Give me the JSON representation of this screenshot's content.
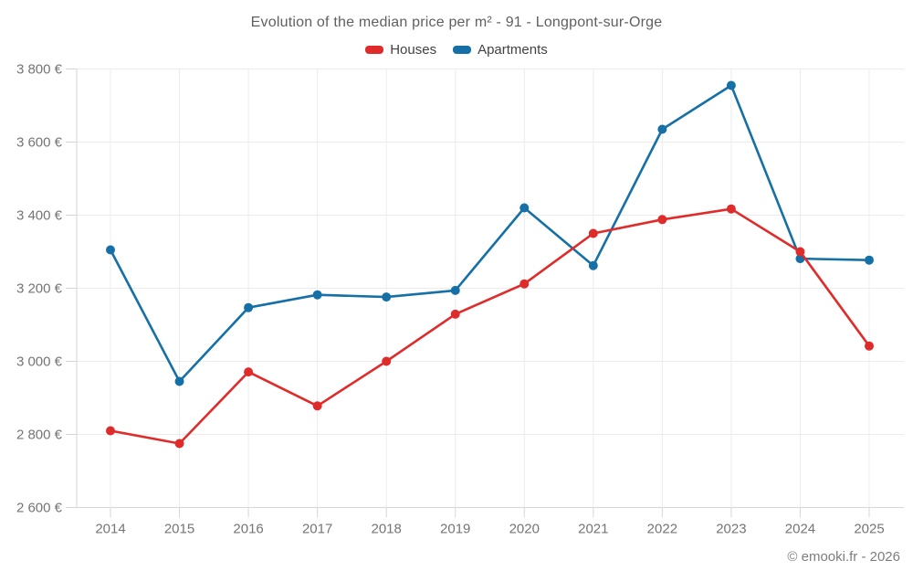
{
  "page": {
    "title": "Evolution of the median price per m² - 91 - Longpont-sur-Orge"
  },
  "chart_data": {
    "type": "line",
    "title": "Evolution of the median price per m² - 91 - Longpont-sur-Orge",
    "categories": [
      "2014",
      "2015",
      "2016",
      "2017",
      "2018",
      "2019",
      "2020",
      "2021",
      "2022",
      "2023",
      "2024",
      "2025"
    ],
    "series": [
      {
        "name": "Houses",
        "color": "#e02b2b",
        "values": [
          2810,
          2775,
          2971,
          2878,
          3000,
          3129,
          3212,
          3350,
          3388,
          3417,
          3300,
          3042
        ]
      },
      {
        "name": "Apartments",
        "color": "#1470a6",
        "values": [
          3305,
          2945,
          3147,
          3182,
          3176,
          3194,
          3420,
          3262,
          3635,
          3755,
          3281,
          3277
        ]
      }
    ],
    "xlabel": "",
    "ylabel": "",
    "ylim": [
      2600,
      3800
    ],
    "yticks": [
      2600,
      2800,
      3000,
      3200,
      3400,
      3600,
      3800
    ],
    "ytick_labels": [
      "2 600 €",
      "2 800 €",
      "3 000 €",
      "3 200 €",
      "3 400 €",
      "3 600 €",
      "3 800 €"
    ],
    "grid": true,
    "legend_position": "top",
    "colors": {
      "grid": "#ececec",
      "axis": "#d6d6d6",
      "tick_text": "#757575"
    }
  },
  "footer": {
    "watermark": "© emooki.fr - 2026"
  }
}
